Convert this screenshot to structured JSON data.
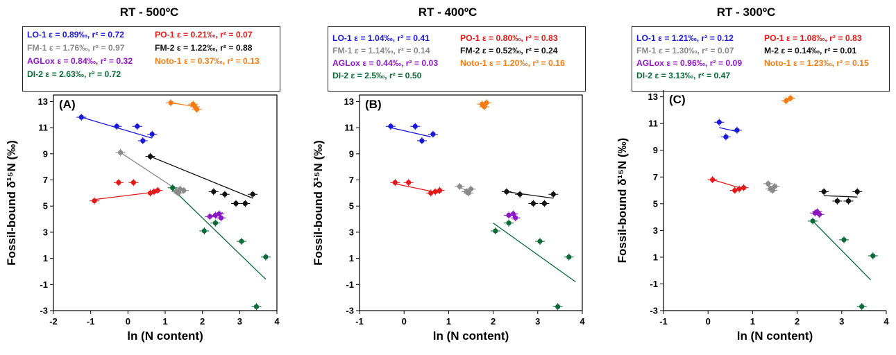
{
  "colors": {
    "LO-1": "#1a1ad6",
    "PO-1": "#e31a1a",
    "FM-1": "#8a8a8a",
    "FM-2": "#111111",
    "AGLox": "#8c1ac0",
    "Noto-1": "#f57c14",
    "DI-2": "#0d6b3a"
  },
  "chart_data": [
    {
      "type": "scatter",
      "title": "RT - 500ºC",
      "panel_letter": "(A)",
      "xlabel": "ln (N content)",
      "ylabel": "Fossil-bound δ¹⁵N (‰)",
      "xlim": [
        -2,
        4
      ],
      "ylim": [
        -3,
        13.5
      ],
      "xticks": [
        "-2",
        "-1",
        "0",
        "1",
        "2",
        "3",
        "4"
      ],
      "yticks": [
        "-3",
        "-1",
        "1",
        "3",
        "5",
        "7",
        "9",
        "11",
        "13"
      ],
      "legend": [
        {
          "series": "LO-1",
          "text": "LO-1 ε = 0.89‰, r² = 0.72"
        },
        {
          "series": "PO-1",
          "text": "PO-1 ε = 0.21‰, r² = 0.07"
        },
        {
          "series": "FM-1",
          "text": "FM-1 ε = 1.76‰, r² = 0.97"
        },
        {
          "series": "FM-2",
          "text": "FM-2 ε = 1.22‰, r² = 0.88"
        },
        {
          "series": "AGLox",
          "text": "AGLox ε = 0.84‰, r² = 0.32"
        },
        {
          "series": "Noto-1",
          "text": "Noto-1 ε = 0.37‰, r² = 0.13"
        },
        {
          "series": "DI-2",
          "text": "DI-2 ε = 2.63‰, r² = 0.72"
        }
      ],
      "series": [
        {
          "key": "LO-1",
          "points": [
            [
              -1.25,
              11.8
            ],
            [
              -0.3,
              11.1
            ],
            [
              0.25,
              11.1
            ],
            [
              0.4,
              10.0
            ],
            [
              0.65,
              10.5
            ]
          ],
          "fit": [
            [
              -1.25,
              11.8
            ],
            [
              0.65,
              10.2
            ]
          ]
        },
        {
          "key": "PO-1",
          "points": [
            [
              -0.9,
              5.4
            ],
            [
              -0.25,
              6.8
            ],
            [
              0.15,
              6.8
            ],
            [
              0.6,
              6.0
            ],
            [
              0.7,
              6.1
            ],
            [
              0.8,
              6.2
            ]
          ],
          "fit": [
            [
              -0.9,
              5.5
            ],
            [
              0.8,
              6.1
            ]
          ]
        },
        {
          "key": "FM-1",
          "points": [
            [
              -0.2,
              9.1
            ],
            [
              1.3,
              6.1
            ],
            [
              1.4,
              6.3
            ],
            [
              1.5,
              6.2
            ],
            [
              1.35,
              6.0
            ]
          ],
          "fit": [
            [
              -0.2,
              9.1
            ],
            [
              1.45,
              6.0
            ]
          ]
        },
        {
          "key": "FM-2",
          "points": [
            [
              0.6,
              8.8
            ],
            [
              2.3,
              6.1
            ],
            [
              2.6,
              5.9
            ],
            [
              2.9,
              5.2
            ],
            [
              3.15,
              5.2
            ],
            [
              3.35,
              5.9
            ]
          ],
          "fit": [
            [
              0.6,
              8.8
            ],
            [
              3.35,
              5.6
            ]
          ]
        },
        {
          "key": "AGLox",
          "points": [
            [
              2.2,
              4.2
            ],
            [
              2.35,
              4.3
            ],
            [
              2.45,
              4.4
            ],
            [
              2.5,
              4.1
            ]
          ],
          "fit": [
            [
              2.2,
              4.1
            ],
            [
              2.55,
              4.5
            ]
          ]
        },
        {
          "key": "Noto-1",
          "points": [
            [
              1.15,
              12.9
            ],
            [
              1.75,
              12.8
            ],
            [
              1.8,
              12.6
            ],
            [
              1.85,
              12.4
            ]
          ],
          "fit": [
            [
              1.15,
              12.9
            ],
            [
              1.85,
              12.6
            ]
          ]
        },
        {
          "key": "DI-2",
          "points": [
            [
              1.2,
              6.4
            ],
            [
              2.05,
              3.1
            ],
            [
              2.35,
              3.7
            ],
            [
              3.05,
              2.3
            ],
            [
              3.45,
              -2.7
            ],
            [
              3.7,
              1.1
            ]
          ],
          "fit": [
            [
              1.2,
              6.3
            ],
            [
              3.7,
              -0.6
            ]
          ]
        }
      ]
    },
    {
      "type": "scatter",
      "title": "RT - 400ºC",
      "panel_letter": "(B)",
      "xlabel": "ln (N content)",
      "ylabel": "Fossil-bound δ¹⁵N (‰)",
      "xlim": [
        -1,
        4
      ],
      "ylim": [
        -3,
        13.5
      ],
      "xticks": [
        "-1",
        "0",
        "1",
        "2",
        "3",
        "4"
      ],
      "yticks": [
        "-3",
        "-1",
        "1",
        "3",
        "5",
        "7",
        "9",
        "11",
        "13"
      ],
      "legend": [
        {
          "series": "LO-1",
          "text": "LO-1 ε = 1.04‰, r² = 0.41"
        },
        {
          "series": "PO-1",
          "text": "PO-1 ε = 0.80‰, r² = 0.83"
        },
        {
          "series": "FM-1",
          "text": "FM-1 ε = 1.14‰, r² = 0.14"
        },
        {
          "series": "FM-2",
          "text": "FM-2 ε = 0.52‰, r² = 0.24"
        },
        {
          "series": "AGLox",
          "text": "AGLox ε = 0.44‰, r² = 0.03"
        },
        {
          "series": "Noto-1",
          "text": "Noto-1 ε = 1.20‰, r² = 0.16"
        },
        {
          "series": "DI-2",
          "text": "DI-2 ε = 2.5‰, r² = 0.50"
        }
      ],
      "series": [
        {
          "key": "LO-1",
          "points": [
            [
              -0.3,
              11.1
            ],
            [
              0.25,
              11.1
            ],
            [
              0.4,
              10.0
            ],
            [
              0.65,
              10.5
            ]
          ],
          "fit": [
            [
              -0.3,
              11.0
            ],
            [
              0.6,
              10.3
            ]
          ]
        },
        {
          "key": "PO-1",
          "points": [
            [
              -0.2,
              6.8
            ],
            [
              0.1,
              6.8
            ],
            [
              0.6,
              6.0
            ],
            [
              0.7,
              6.1
            ],
            [
              0.8,
              6.2
            ]
          ],
          "fit": [
            [
              -0.2,
              6.7
            ],
            [
              0.8,
              6.0
            ]
          ]
        },
        {
          "key": "FM-1",
          "points": [
            [
              1.25,
              6.5
            ],
            [
              1.4,
              6.1
            ],
            [
              1.5,
              6.3
            ],
            [
              1.45,
              6.0
            ]
          ],
          "fit": [
            [
              1.25,
              6.4
            ],
            [
              1.5,
              6.1
            ]
          ]
        },
        {
          "key": "FM-2",
          "points": [
            [
              2.3,
              6.1
            ],
            [
              2.6,
              5.9
            ],
            [
              2.9,
              5.2
            ],
            [
              3.15,
              5.2
            ],
            [
              3.35,
              5.9
            ]
          ],
          "fit": [
            [
              2.3,
              6.1
            ],
            [
              3.35,
              5.6
            ]
          ]
        },
        {
          "key": "AGLox",
          "points": [
            [
              2.35,
              4.3
            ],
            [
              2.45,
              4.4
            ],
            [
              2.5,
              4.1
            ]
          ],
          "fit": [
            [
              2.3,
              4.3
            ],
            [
              2.55,
              4.4
            ]
          ]
        },
        {
          "key": "Noto-1",
          "points": [
            [
              1.75,
              12.8
            ],
            [
              1.8,
              12.6
            ],
            [
              1.85,
              12.9
            ]
          ],
          "fit": [
            [
              1.75,
              12.7
            ],
            [
              1.85,
              12.6
            ]
          ]
        },
        {
          "key": "DI-2",
          "points": [
            [
              2.05,
              3.1
            ],
            [
              2.35,
              3.7
            ],
            [
              3.05,
              2.3
            ],
            [
              3.45,
              -2.7
            ],
            [
              3.7,
              1.1
            ]
          ],
          "fit": [
            [
              2.0,
              3.7
            ],
            [
              3.85,
              -0.8
            ]
          ]
        }
      ]
    },
    {
      "type": "scatter",
      "title": "RT - 300ºC",
      "panel_letter": "(C)",
      "xlabel": "ln (N content)",
      "ylabel": "Fossil-bound δ¹⁵N (‰)",
      "xlim": [
        -1,
        4
      ],
      "ylim": [
        -3,
        13.5
      ],
      "xticks": [
        "-1",
        "0",
        "1",
        "2",
        "3",
        "4"
      ],
      "yticks": [
        "-3",
        "-1",
        "1",
        "3",
        "5",
        "7",
        "9",
        "11",
        "13"
      ],
      "legend": [
        {
          "series": "LO-1",
          "text": "LO-1 ε = 1.21‰, r² = 0.12"
        },
        {
          "series": "PO-1",
          "text": "PO-1 ε = 1.08‰, r² = 0.83"
        },
        {
          "series": "FM-1",
          "text": "FM-1 ε = 1.30‰, r² = 0.07"
        },
        {
          "series": "FM-2",
          "text": "M-2 ε = 0.14‰, r² = 0.01"
        },
        {
          "series": "AGLox",
          "text": "AGLox ε = 0.96‰, r² = 0.09"
        },
        {
          "series": "Noto-1",
          "text": "Noto-1 ε = 1.23‰, r² = 0.15"
        },
        {
          "series": "DI-2",
          "text": "DI-2 ε = 3.13‰, r² = 0.47"
        }
      ],
      "series": [
        {
          "key": "LO-1",
          "points": [
            [
              0.25,
              11.1
            ],
            [
              0.4,
              10.0
            ],
            [
              0.65,
              10.5
            ]
          ],
          "fit": [
            [
              0.25,
              10.7
            ],
            [
              0.65,
              10.4
            ]
          ]
        },
        {
          "key": "PO-1",
          "points": [
            [
              0.1,
              6.8
            ],
            [
              0.6,
              6.0
            ],
            [
              0.7,
              6.1
            ],
            [
              0.8,
              6.2
            ]
          ],
          "fit": [
            [
              0.1,
              6.8
            ],
            [
              0.8,
              6.1
            ]
          ]
        },
        {
          "key": "FM-1",
          "points": [
            [
              1.35,
              6.5
            ],
            [
              1.4,
              6.1
            ],
            [
              1.5,
              6.3
            ],
            [
              1.45,
              6.0
            ]
          ],
          "fit": [
            [
              1.35,
              6.3
            ],
            [
              1.5,
              6.2
            ]
          ]
        },
        {
          "key": "FM-2",
          "points": [
            [
              2.6,
              5.9
            ],
            [
              2.9,
              5.2
            ],
            [
              3.15,
              5.2
            ],
            [
              3.35,
              5.9
            ]
          ],
          "fit": [
            [
              2.6,
              5.6
            ],
            [
              3.35,
              5.5
            ]
          ]
        },
        {
          "key": "AGLox",
          "points": [
            [
              2.4,
              4.3
            ],
            [
              2.45,
              4.4
            ],
            [
              2.5,
              4.2
            ]
          ],
          "fit": [
            [
              2.4,
              4.2
            ],
            [
              2.5,
              4.4
            ]
          ]
        },
        {
          "key": "Noto-1",
          "points": [
            [
              1.75,
              12.7
            ],
            [
              1.85,
              12.9
            ]
          ],
          "fit": [
            [
              1.75,
              12.8
            ],
            [
              1.85,
              12.8
            ]
          ]
        },
        {
          "key": "DI-2",
          "points": [
            [
              2.35,
              3.7
            ],
            [
              3.05,
              2.3
            ],
            [
              3.45,
              -2.7
            ],
            [
              3.7,
              1.1
            ]
          ],
          "fit": [
            [
              2.35,
              3.7
            ],
            [
              3.65,
              -0.7
            ]
          ]
        }
      ]
    }
  ]
}
